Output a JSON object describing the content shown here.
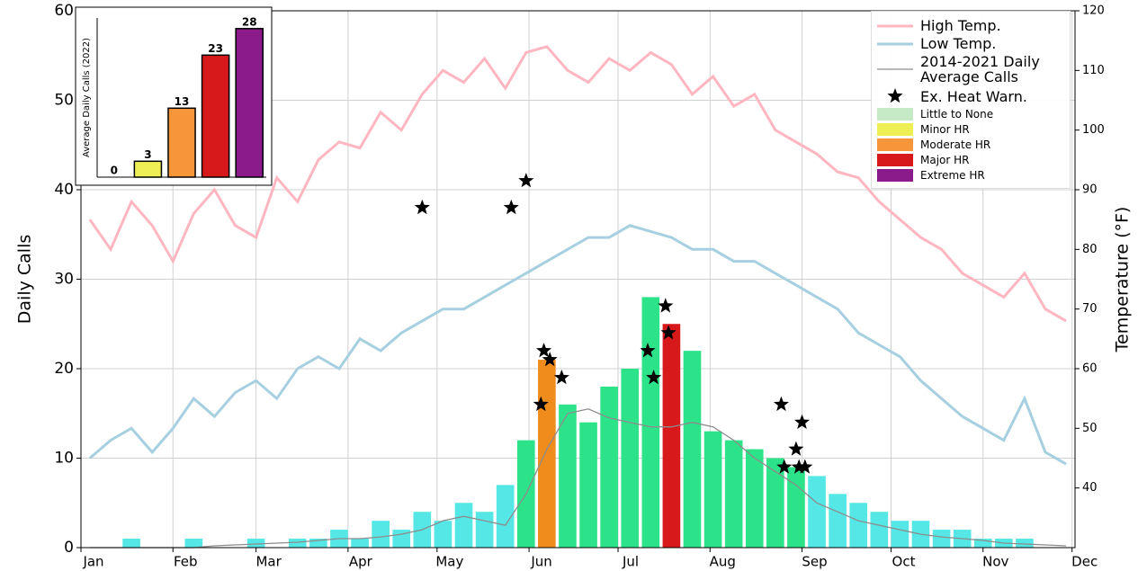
{
  "chart_data": [
    {
      "type": "combo",
      "ylabel": "Daily Calls",
      "y2label": "Temperature (°F)",
      "x": [
        4,
        11,
        18,
        25,
        32,
        39,
        46,
        53,
        60,
        67,
        74,
        81,
        88,
        95,
        102,
        109,
        116,
        123,
        130,
        137,
        144,
        151,
        158,
        165,
        172,
        179,
        186,
        193,
        200,
        207,
        214,
        221,
        228,
        235,
        242,
        249,
        256,
        263,
        270,
        277,
        284,
        291,
        298,
        305,
        312,
        319,
        326,
        333
      ],
      "xlim": [
        1,
        336
      ],
      "xticks": [
        {
          "value": 1,
          "label": "Jan"
        },
        {
          "value": 32,
          "label": "Feb"
        },
        {
          "value": 60,
          "label": "Mar"
        },
        {
          "value": 91,
          "label": "Apr"
        },
        {
          "value": 121,
          "label": "May"
        },
        {
          "value": 152,
          "label": "Jun"
        },
        {
          "value": 182,
          "label": "Jul"
        },
        {
          "value": 213,
          "label": "Aug"
        },
        {
          "value": 244,
          "label": "Sep"
        },
        {
          "value": 274,
          "label": "Oct"
        },
        {
          "value": 305,
          "label": "Nov"
        },
        {
          "value": 335,
          "label": "Dec"
        }
      ],
      "ylim": [
        0,
        60
      ],
      "yticks": [
        0,
        10,
        20,
        30,
        40,
        50,
        60
      ],
      "y2lim": [
        30,
        120
      ],
      "y2ticks": [
        40,
        50,
        60,
        70,
        80,
        90,
        100,
        110,
        120
      ],
      "grid": true,
      "legend": "upper right",
      "bars": {
        "values": [
          0,
          0,
          1,
          0,
          0,
          1,
          0,
          0,
          1,
          0,
          1,
          1,
          2,
          1,
          3,
          2,
          4,
          3,
          5,
          4,
          7,
          12,
          21,
          16,
          14,
          18,
          20,
          28,
          25,
          22,
          13,
          12,
          11,
          10,
          9,
          8,
          6,
          5,
          4,
          3,
          3,
          2,
          2,
          1,
          1,
          1,
          0,
          0
        ],
        "colors": [
          "#55e6e6",
          "#55e6e6",
          "#55e6e6",
          "#55e6e6",
          "#55e6e6",
          "#55e6e6",
          "#55e6e6",
          "#55e6e6",
          "#55e6e6",
          "#55e6e6",
          "#55e6e6",
          "#55e6e6",
          "#55e6e6",
          "#55e6e6",
          "#55e6e6",
          "#55e6e6",
          "#55e6e6",
          "#55e6e6",
          "#55e6e6",
          "#55e6e6",
          "#55e6e6",
          "#2de38a",
          "#f08c1c",
          "#2de38a",
          "#2de38a",
          "#2de38a",
          "#2de38a",
          "#2de38a",
          "#d7191c",
          "#2de38a",
          "#2de38a",
          "#2de38a",
          "#2de38a",
          "#2de38a",
          "#2de38a",
          "#55e6e6",
          "#55e6e6",
          "#55e6e6",
          "#55e6e6",
          "#55e6e6",
          "#55e6e6",
          "#55e6e6",
          "#55e6e6",
          "#55e6e6",
          "#55e6e6",
          "#55e6e6",
          "#55e6e6",
          "#55e6e6"
        ]
      },
      "series": [
        {
          "name": "High Temp.",
          "axis": "y2",
          "color": "#ffb6c1",
          "values": [
            85,
            80,
            88,
            84,
            78,
            86,
            90,
            84,
            82,
            92,
            88,
            95,
            98,
            97,
            103,
            100,
            106,
            110,
            108,
            112,
            107,
            113,
            114,
            110,
            108,
            112,
            110,
            113,
            111,
            106,
            109,
            104,
            106,
            100,
            98,
            96,
            93,
            92,
            88,
            85,
            82,
            80,
            76,
            74,
            72,
            76,
            70,
            68
          ]
        },
        {
          "name": "Low Temp.",
          "axis": "y2",
          "color": "#a6cfe0",
          "values": [
            45,
            48,
            50,
            46,
            50,
            55,
            52,
            56,
            58,
            55,
            60,
            62,
            60,
            65,
            63,
            66,
            68,
            70,
            70,
            72,
            74,
            76,
            78,
            80,
            82,
            82,
            84,
            83,
            82,
            80,
            80,
            78,
            78,
            76,
            74,
            72,
            70,
            66,
            64,
            62,
            58,
            55,
            52,
            50,
            48,
            55,
            46,
            44
          ]
        },
        {
          "name": "2014-2021 Daily Average Calls",
          "color": "#8c8c8c",
          "values": [
            0,
            0,
            0,
            0,
            0,
            0,
            0.2,
            0.3,
            0.4,
            0.5,
            0.6,
            0.8,
            1,
            1,
            1.2,
            1.5,
            2,
            3,
            3.5,
            3,
            2.5,
            6,
            11,
            15,
            15.5,
            14.5,
            14,
            13.5,
            13.5,
            14,
            13.5,
            12,
            10,
            8.5,
            7,
            5,
            4,
            3,
            2.5,
            2,
            1.5,
            1.2,
            1,
            0.8,
            0.5,
            0.4,
            0.3,
            0.2
          ]
        }
      ],
      "warnings": {
        "name": "Ex. Heat Warn.",
        "color": "#000000",
        "x": [
          116,
          146,
          151,
          156,
          157,
          159,
          163,
          192,
          194,
          198,
          199,
          237,
          238,
          242,
          243,
          244,
          245
        ],
        "values": [
          38,
          38,
          41,
          16,
          22,
          21,
          19,
          22,
          19,
          27,
          24,
          16,
          9,
          11,
          9,
          14,
          9
        ]
      },
      "heat_risk_legend": [
        {
          "name": "Little to None",
          "color": "#c6eac6"
        },
        {
          "name": "Minor HR",
          "color": "#eeee55"
        },
        {
          "name": "Moderate HR",
          "color": "#f7953a"
        },
        {
          "name": "Major HR",
          "color": "#d7191c"
        },
        {
          "name": "Extreme HR",
          "color": "#8b1a8b"
        }
      ]
    },
    {
      "type": "bar",
      "ylabel": "Average Daily Calls (2022)",
      "categories": [
        null,
        null,
        null,
        null,
        null
      ],
      "values": [
        0,
        3,
        13,
        23,
        28
      ],
      "colors": [
        "#c6eac6",
        "#eeee55",
        "#f7953a",
        "#d7191c",
        "#8b1a8b"
      ],
      "ylim": [
        0,
        30
      ]
    }
  ]
}
